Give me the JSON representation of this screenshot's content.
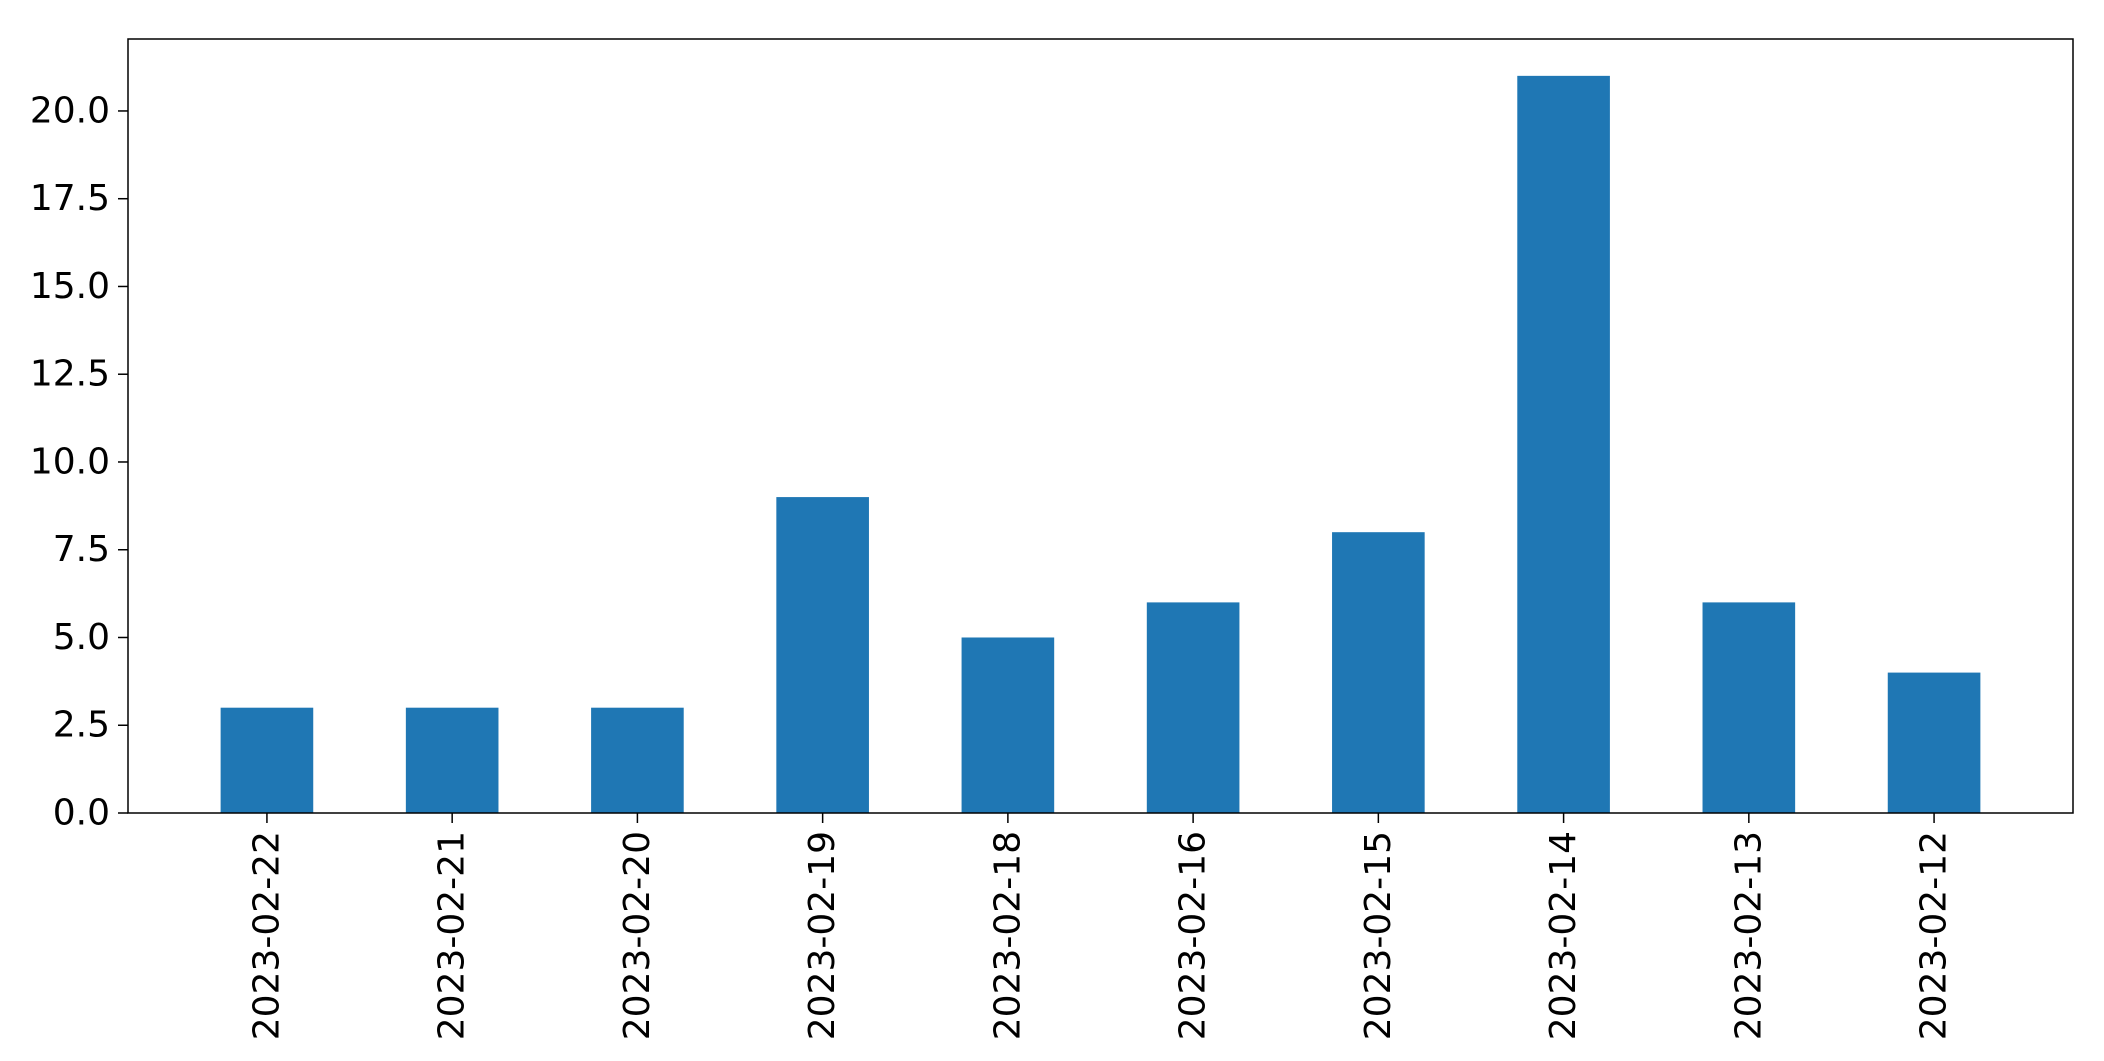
{
  "chart_data": {
    "type": "bar",
    "title": "",
    "xlabel": "",
    "ylabel": "",
    "categories": [
      "2023-02-22",
      "2023-02-21",
      "2023-02-20",
      "2023-02-19",
      "2023-02-18",
      "2023-02-16",
      "2023-02-15",
      "2023-02-14",
      "2023-02-13",
      "2023-02-12"
    ],
    "values": [
      3,
      3,
      3,
      9,
      5,
      6,
      8,
      21,
      6,
      4
    ],
    "ylim": [
      0,
      22.05
    ],
    "yticks": [
      0,
      2.5,
      5,
      7.5,
      10,
      12.5,
      15,
      17.5,
      20
    ],
    "ytick_labels": [
      "0.0",
      "2.5",
      "5.0",
      "7.5",
      "10.0",
      "12.5",
      "15.0",
      "17.5",
      "20.0"
    ],
    "bar_color": "#1f77b4",
    "grid": false,
    "legend": "none",
    "x_tick_rotation": "vertical"
  }
}
